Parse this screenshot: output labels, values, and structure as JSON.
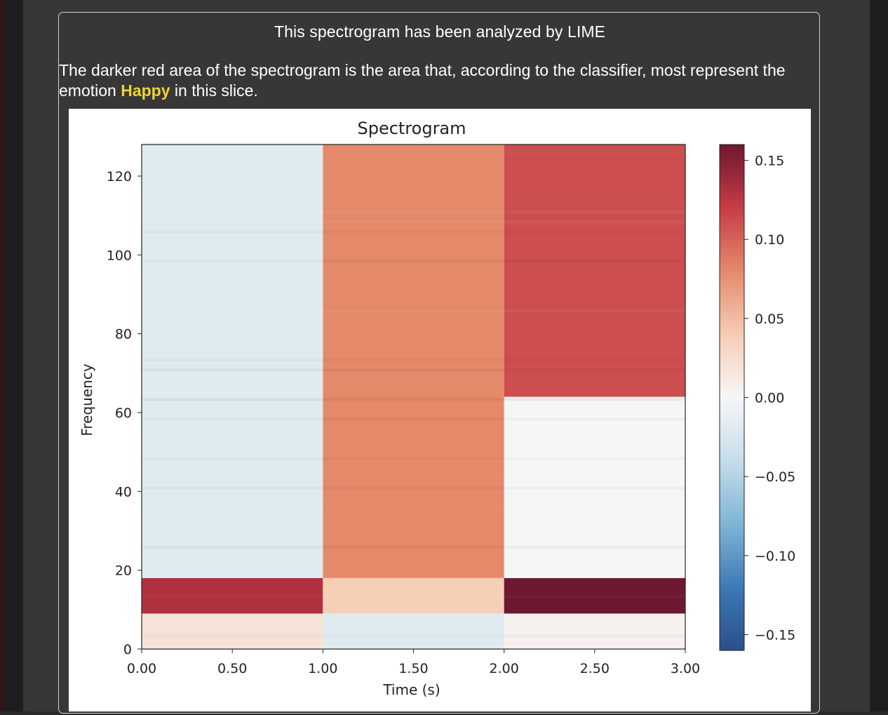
{
  "card": {
    "title": "This spectrogram has been analyzed by LIME",
    "description_before": "The darker red area of the spectrogram is the area that, according to the classifier, most represent the emotion ",
    "emotion": "Happy",
    "description_after": " in this slice."
  },
  "colors": {
    "page_bg": "#373737",
    "emotion_highlight": "#f2d230"
  },
  "chart_data": {
    "type": "heatmap",
    "title": "Spectrogram",
    "xlabel": "Time (s)",
    "ylabel": "Frequency",
    "xlim": [
      0,
      3
    ],
    "ylim": [
      0,
      128
    ],
    "x_ticks": [
      "0.00",
      "0.50",
      "1.00",
      "1.50",
      "2.00",
      "2.50",
      "3.00"
    ],
    "x_tick_values": [
      0,
      0.5,
      1.0,
      1.5,
      2.0,
      2.5,
      3.0
    ],
    "y_ticks": [
      "0",
      "20",
      "40",
      "60",
      "80",
      "100",
      "120"
    ],
    "y_tick_values": [
      0,
      20,
      40,
      60,
      80,
      100,
      120
    ],
    "colorbar": {
      "colormap": "RdBu_r",
      "range": [
        -0.16,
        0.16
      ],
      "ticks": [
        "0.15",
        "0.10",
        "0.05",
        "0.00",
        "−0.05",
        "−0.10",
        "−0.15"
      ],
      "tick_values": [
        0.15,
        0.1,
        0.05,
        0.0,
        -0.05,
        -0.1,
        -0.15
      ]
    },
    "segments": [
      {
        "x": [
          0,
          1
        ],
        "y": [
          18,
          128
        ],
        "weight": -0.02
      },
      {
        "x": [
          1,
          2
        ],
        "y": [
          18,
          128
        ],
        "weight": 0.08
      },
      {
        "x": [
          2,
          3
        ],
        "y": [
          64,
          128
        ],
        "weight": 0.11
      },
      {
        "x": [
          2,
          3
        ],
        "y": [
          18,
          64
        ],
        "weight": 0.0
      },
      {
        "x": [
          0,
          1
        ],
        "y": [
          9,
          18
        ],
        "weight": 0.13
      },
      {
        "x": [
          1,
          2
        ],
        "y": [
          9,
          18
        ],
        "weight": 0.04
      },
      {
        "x": [
          2,
          3
        ],
        "y": [
          9,
          18
        ],
        "weight": 0.17
      },
      {
        "x": [
          0,
          1
        ],
        "y": [
          0,
          9
        ],
        "weight": 0.02
      },
      {
        "x": [
          1,
          2
        ],
        "y": [
          0,
          9
        ],
        "weight": -0.02
      },
      {
        "x": [
          2,
          3
        ],
        "y": [
          0,
          9
        ],
        "weight": 0.005
      }
    ]
  }
}
